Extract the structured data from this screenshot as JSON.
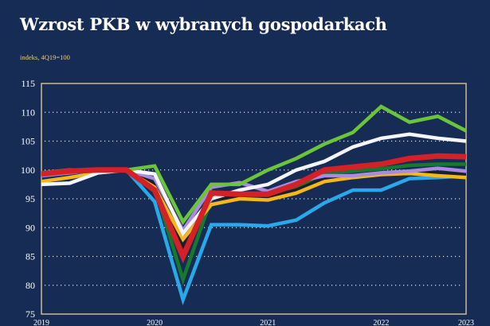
{
  "chart_data": {
    "type": "line",
    "title": "Wzrost PKB w wybranych gospodarkach",
    "subtitle": "indeks, 4Q19=100",
    "x": [
      "2019Q1",
      "2019Q2",
      "2019Q3",
      "2019Q4",
      "2020Q1",
      "2020Q2",
      "2020Q3",
      "2020Q4",
      "2021Q1",
      "2021Q2",
      "2021Q3",
      "2021Q4",
      "2022Q1",
      "2022Q2",
      "2022Q3",
      "2022Q4"
    ],
    "xticks": [
      {
        "label": "2019",
        "index": 0
      },
      {
        "label": "2020",
        "index": 4
      },
      {
        "label": "2021",
        "index": 8
      },
      {
        "label": "2022",
        "index": 12
      },
      {
        "label": "2023",
        "index": 15
      }
    ],
    "yticks": [
      75,
      80,
      85,
      90,
      95,
      100,
      105,
      110,
      115
    ],
    "ylim": [
      75,
      115
    ],
    "grid": "horizontal dotted",
    "background": "#172c54",
    "frame_color": "#c9b994",
    "series": [
      {
        "color": "#29a8ea",
        "values": [
          99,
          99.5,
          100,
          100,
          94.5,
          77.5,
          90.5,
          90.5,
          90.3,
          91.3,
          94.3,
          96.5,
          96.5,
          98.5,
          98.7,
          99
        ]
      },
      {
        "color": "#157a2c",
        "values": [
          99,
          100,
          100,
          100,
          97,
          81,
          95,
          95.5,
          95.5,
          97,
          99.5,
          99.8,
          100.2,
          100.8,
          101,
          101
        ]
      },
      {
        "color": "#1b1f2b",
        "values": [
          99,
          99.5,
          100,
          100,
          97.5,
          87,
          95,
          95.3,
          95.2,
          96.5,
          98.5,
          99,
          99.5,
          99.7,
          99.5,
          99.2
        ]
      },
      {
        "color": "#f4b81c",
        "values": [
          98,
          98.7,
          99.5,
          100,
          97,
          88,
          94,
          95,
          94.8,
          96,
          98,
          98.7,
          99.2,
          99.4,
          99,
          98.7
        ]
      },
      {
        "color": "#a98be0",
        "values": [
          99,
          99.5,
          100,
          100,
          98.5,
          89.5,
          97,
          97.8,
          96.3,
          98,
          99,
          99,
          99.5,
          99.8,
          100.3,
          99.8
        ]
      },
      {
        "color": "#f4f6ff",
        "values": [
          97.5,
          97.7,
          99.5,
          100,
          99.3,
          89,
          95,
          96.5,
          97.5,
          100,
          101.5,
          104,
          105.5,
          106.2,
          105.5,
          105
        ]
      },
      {
        "color": "#6cc43a",
        "values": [
          99.5,
          100,
          100,
          100,
          100.7,
          91,
          97.5,
          97.5,
          100,
          102,
          104.5,
          106.5,
          111,
          108.3,
          109.3,
          106.8
        ]
      },
      {
        "color": "#d42128",
        "values": [
          99.3,
          99.8,
          100,
          100,
          96.5,
          85,
          96,
          95.8,
          95.8,
          97.5,
          100,
          100.5,
          101,
          102,
          102.4,
          102.3
        ],
        "thick": true
      }
    ]
  }
}
